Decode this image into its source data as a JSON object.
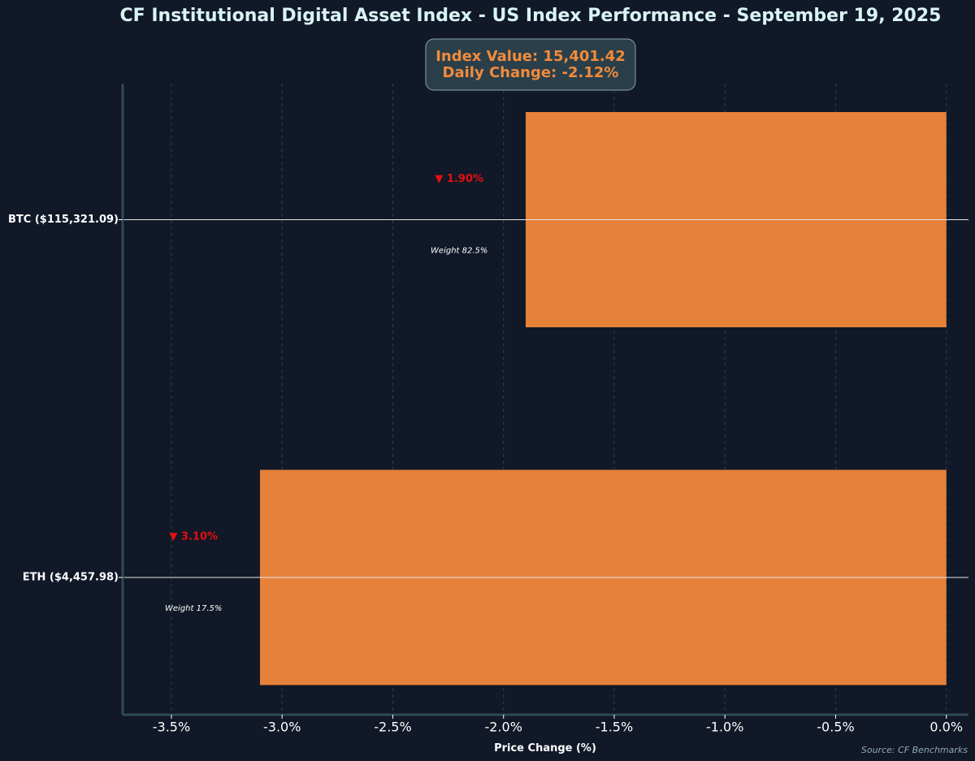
{
  "colors": {
    "background": "#111827",
    "bar": "#e6813a",
    "negative": "#e60f0f",
    "grid": "#274150",
    "axis": "#2f4a55",
    "summary_bg": "#2b3f4a",
    "summary_border": "#8aa4ad",
    "summary_text": "#f28b3c",
    "title": "#d8f4f4",
    "source": "#8fa7b5"
  },
  "chart_data": {
    "type": "bar",
    "orientation": "horizontal",
    "title": "CF Institutional Digital Asset Index - US Index Performance - September 19, 2025",
    "xlabel": "Price Change (%)",
    "ylabel": "",
    "xlim": [
      -3.72,
      0.1
    ],
    "categories": [
      "BTC ($115,321.09)",
      "ETH ($4,457.98)"
    ],
    "values": [
      -1.9,
      -3.1
    ],
    "change_labels": [
      "▼ 1.90%",
      "▼ 3.10%"
    ],
    "weight_labels": [
      "Weight 82.5%",
      "Weight 17.5%"
    ],
    "weights": [
      82.5,
      17.5
    ],
    "xticks": [
      -3.5,
      -3.0,
      -2.5,
      -2.0,
      -1.5,
      -1.0,
      -0.5,
      0.0
    ],
    "xtick_labels": [
      "-3.5%",
      "-3.0%",
      "-2.5%",
      "-2.0%",
      "-1.5%",
      "-1.0%",
      "-0.5%",
      "0.0%"
    ],
    "grid": "vertical dashed",
    "legend": "none",
    "summary": {
      "index_value_label": "Index Value: 15,401.42",
      "daily_change_label": "Daily Change: -2.12%",
      "index_value": 15401.42,
      "daily_change": -2.12
    },
    "source": "Source: CF Benchmarks"
  }
}
